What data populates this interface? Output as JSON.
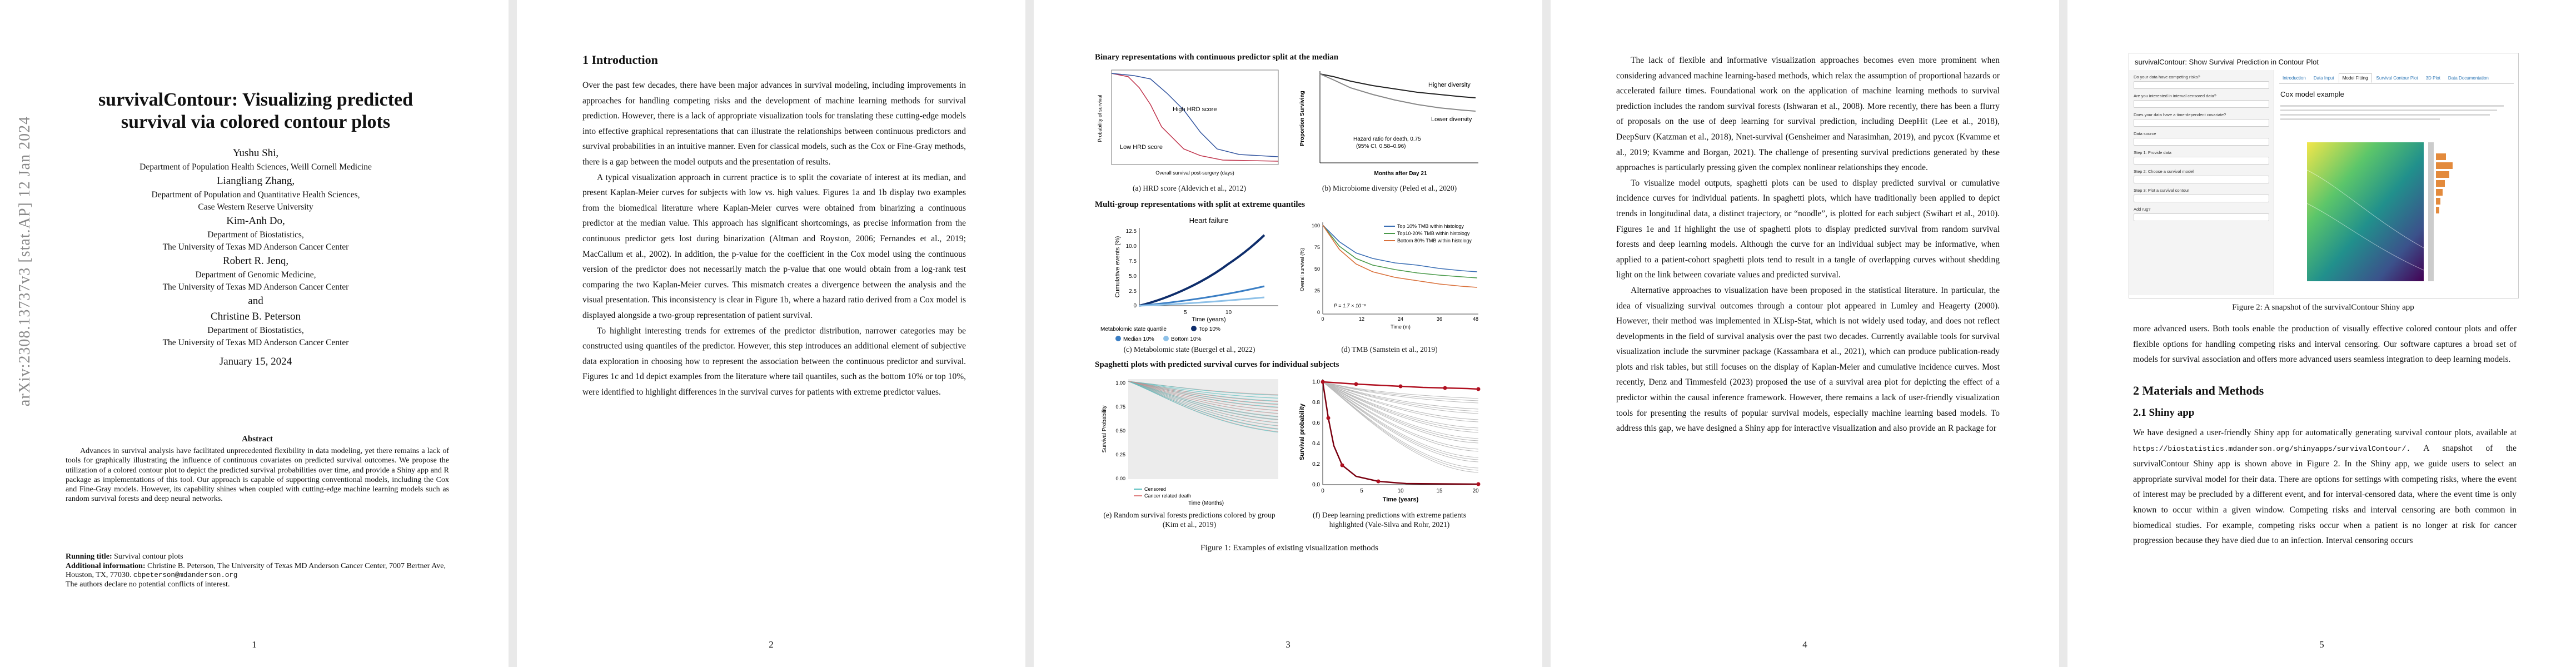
{
  "arxiv_stamp": "arXiv:2308.13737v3  [stat.AP]  12 Jan 2024",
  "page1": {
    "title": "survivalContour: Visualizing predicted survival via colored contour plots",
    "authors": [
      {
        "name": "Yushu Shi,",
        "affil": [
          "Department of Population Health Sciences, Weill Cornell Medicine"
        ]
      },
      {
        "name": "Liangliang Zhang,",
        "affil": [
          "Department of Population and Quantitative Health Sciences,",
          "Case Western Reserve University"
        ]
      },
      {
        "name": "Kim-Anh Do,",
        "affil": [
          "Department of Biostatistics,",
          "The University of Texas MD Anderson Cancer Center"
        ]
      },
      {
        "name": "Robert R. Jenq,",
        "affil": [
          "Department of Genomic Medicine,",
          "The University of Texas MD Anderson Cancer Center"
        ]
      },
      {
        "name": "and",
        "affil": []
      },
      {
        "name": "Christine B. Peterson",
        "affil": [
          "Department of Biostatistics,",
          "The University of Texas MD Anderson Cancer Center"
        ]
      }
    ],
    "date": "January 15, 2024",
    "abstract_heading": "Abstract",
    "abstract": "Advances in survival analysis have facilitated unprecedented flexibility in data modeling, yet there remains a lack of tools for graphically illustrating the influence of continuous covariates on predicted survival outcomes. We propose the utilization of a colored contour plot to depict the predicted survival probabilities over time, and provide a Shiny app and R package as implementations of this tool. Our approach is capable of supporting conventional models, including the Cox and Fine-Gray models. However, its capability shines when coupled with cutting-edge machine learning models such as random survival forests and deep neural networks.",
    "running_title_label": "Running title:",
    "running_title": "Survival contour plots",
    "additional_label": "Additional information:",
    "additional": "Christine B. Peterson, The University of Texas MD Anderson Cancer Center, 7007 Bertner Ave, Houston, TX, 77030.",
    "email": "cbpeterson@mdanderson.org",
    "conflicts": "The authors declare no potential conflicts of interest.",
    "page_number": "1"
  },
  "page2": {
    "section": "1   Introduction",
    "paragraphs": [
      "Over the past few decades, there have been major advances in survival modeling, including improvements in approaches for handling competing risks and the development of machine learning methods for survival prediction. However, there is a lack of appropriate visualization tools for translating these cutting-edge models into effective graphical representations that can illustrate the relationships between continuous predictors and survival probabilities in an intuitive manner. Even for classical models, such as the Cox or Fine-Gray methods, there is a gap between the model outputs and the presentation of results.",
      "A typical visualization approach in current practice is to split the covariate of interest at its median, and present Kaplan-Meier curves for subjects with low vs. high values. Figures 1a and 1b display two examples from the biomedical literature where Kaplan-Meier curves were obtained from binarizing a continuous predictor at the median value. This approach has significant shortcomings, as precise information from the continuous predictor gets lost during binarization (Altman and Royston, 2006; Fernandes et al., 2019; MacCallum et al., 2002). In addition, the p-value for the coefficient in the Cox model using the continuous version of the predictor does not necessarily match the p-value that one would obtain from a log-rank test comparing the two Kaplan-Meier curves. This mismatch creates a divergence between the analysis and the visual presentation. This inconsistency is clear in Figure 1b, where a hazard ratio derived from a Cox model is displayed alongside a two-group representation of patient survival.",
      "To highlight interesting trends for extremes of the predictor distribution, narrower categories may be constructed using quantiles of the predictor. However, this step introduces an additional element of subjective data exploration in choosing how to represent the association between the continuous predictor and survival. Figures 1c and 1d depict examples from the literature where tail quantiles, such as the bottom 10% or top 10%, were identified to highlight differences in the survival curves for patients with extreme predictor values."
    ],
    "page_number": "2"
  },
  "page3": {
    "row1_title": "Binary representations with continuous predictor split at the median",
    "row2_title": "Multi-group representations with split at extreme quantiles",
    "row3_title": "Spaghetti plots with predicted survival curves for individual subjects",
    "fig_a": {
      "caption": "(a) HRD score (Aldevich et al., 2012)",
      "ylabel": "Probability of survival",
      "xlabel": "Overall survival post-surgery (days)",
      "series": [
        "High HRD score",
        "Low HRD score"
      ]
    },
    "fig_b": {
      "caption": "(b) Microbiome diversity (Peled et al., 2020)",
      "ylabel": "Proportion Surviving",
      "xlabel": "Months after Day 21",
      "series": [
        "Higher diversity",
        "Lower diversity"
      ],
      "annotation_1": "Hazard ratio for death, 0.75",
      "annotation_2": "(95% CI, 0.58–0.96)"
    },
    "fig_c": {
      "caption": "(c) Metabolomic state (Buergel et al., 2022)",
      "title": "Heart failure",
      "ylabel": "Cumulative events (%)",
      "xlabel": "Time (years)",
      "legend_title": "Metabolomic state quantile",
      "series": [
        "Top 10%",
        "Median 10%",
        "Bottom 10%"
      ],
      "yticks": [
        "12.5",
        "10.0",
        "7.5",
        "5.0",
        "2.5",
        "0"
      ],
      "xticks": [
        "5",
        "10"
      ]
    },
    "fig_d": {
      "caption": "(d) TMB (Samstein et al., 2019)",
      "ylabel": "Overall survival (%)",
      "xlabel": "Time (m)",
      "series": [
        "Top 10% TMB within histology",
        "Top10-20% TMB within histology",
        "Bottom 80% TMB within histology"
      ],
      "pvalue": "P = 1.7 × 10⁻⁹",
      "yticks": [
        "100",
        "75",
        "50",
        "25",
        "0"
      ],
      "xticks": [
        "0",
        "12",
        "24",
        "36",
        "48"
      ]
    },
    "fig_e": {
      "caption": "(e) Random survival forests predictions colored by group (Kim et al., 2019)",
      "ylabel": "Survival Probability",
      "xlabel": "Time (Months)",
      "legend": [
        "Censored",
        "Cancer related death"
      ],
      "yticks": [
        "1.00",
        "0.75",
        "0.50",
        "0.25",
        "0.00"
      ]
    },
    "fig_f": {
      "caption": "(f) Deep learning predictions with extreme patients highlighted (Vale-Silva and Rohr, 2021)",
      "ylabel": "Survival probability",
      "xlabel": "Time (years)",
      "yticks": [
        "1.0",
        "0.8",
        "0.6",
        "0.4",
        "0.2",
        "0.0"
      ],
      "xticks": [
        "0",
        "5",
        "10",
        "15",
        "20"
      ]
    },
    "figure_caption": "Figure 1: Examples of existing visualization methods",
    "page_number": "3"
  },
  "page4": {
    "paragraphs": [
      "The lack of flexible and informative visualization approaches becomes even more prominent when considering advanced machine learning-based methods, which relax the assumption of proportional hazards or accelerated failure times. Foundational work on the application of machine learning methods to survival prediction includes the random survival forests (Ishwaran et al., 2008). More recently, there has been a flurry of proposals on the use of deep learning for survival prediction, including DeepHit (Lee et al., 2018), DeepSurv (Katzman et al., 2018), Nnet-survival (Gensheimer and Narasimhan, 2019), and pycox (Kvamme et al., 2019; Kvamme and Borgan, 2021). The challenge of presenting survival predictions generated by these approaches is particularly pressing given the complex nonlinear relationships they encode.",
      "To visualize model outputs, spaghetti plots can be used to display predicted survival or cumulative incidence curves for individual patients. In spaghetti plots, which have traditionally been applied to depict trends in longitudinal data, a distinct trajectory, or “noodle”, is plotted for each subject (Swihart et al., 2010). Figures 1e and 1f highlight the use of spaghetti plots to display predicted survival from random survival forests and deep learning models. Although the curve for an individual subject may be informative, when applied to a patient-cohort spaghetti plots tend to result in a tangle of overlapping curves without shedding light on the link between covariate values and predicted survival.",
      "Alternative approaches to visualization have been proposed in the statistical literature. In particular, the idea of visualizing survival outcomes through a contour plot appeared in Lumley and Heagerty (2000). However, their method was implemented in XLisp-Stat, which is not widely used today, and does not reflect developments in the field of survival analysis over the past two decades. Currently available tools for survival visualization include the survminer package (Kassambara et al., 2021), which can produce publication-ready plots and risk tables, but still focuses on the display of Kaplan-Meier and cumulative incidence curves. Most recently, Denz and Timmesfeld (2023) proposed the use of a survival area plot for depicting the effect of a predictor within the causal inference framework. However, there remains a lack of user-friendly visualization tools for presenting the results of popular survival models, especially machine learning based models. To address this gap, we have designed a Shiny app for interactive visualization and also provide an R package for"
    ],
    "page_number": "4"
  },
  "page5": {
    "app": {
      "title": "survivalContour: Show Survival Prediction in Contour Plot",
      "tabs": [
        "Introduction",
        "Data Input",
        "Model Fitting",
        "Survival Contour Plot",
        "3D Plot",
        "Data Documentation"
      ],
      "active_tab": "Model Fitting",
      "plot_heading": "Cox model example",
      "sidebar_labels": [
        "Do your data have competing risks?",
        "Are you interested in interval censored data?",
        "Does your data have a time-dependent covariate?",
        "Data source",
        "Step 1: Provide data",
        "Step 2: Choose a survival model",
        "Step 3: Plot a survival contour",
        "Add rug?"
      ]
    },
    "figure_caption": "Figure 2: A snapshot of the survivalContour Shiny app",
    "para_top": "more advanced users. Both tools enable the production of visually effective colored contour plots and offer flexible options for handling competing risks and interval censoring. Our software captures a broad set of models for survival association and offers more advanced users seamless integration to deep learning models.",
    "section": "2   Materials and Methods",
    "subsection": "2.1   Shiny app",
    "para_shiny_start": "We have designed a user-friendly Shiny app for automatically generating survival contour plots, available at",
    "url": "https://biostatistics.mdanderson.org/shinyapps/survivalContour/.",
    "para_shiny_end": "A snapshot of the survivalContour Shiny app is shown above in Figure 2. In the Shiny app, we guide users to select an appropriate survival model for their data. There are options for settings with competing risks, where the event of interest may be precluded by a different event, and for interval-censored data, where the event time is only known to occur within a given window. Competing risks and interval censoring are both common in biomedical studies. For example, competing risks occur when a patient is no longer at risk for cancer progression because they have died due to an infection. Interval censoring occurs",
    "page_number": "5"
  }
}
